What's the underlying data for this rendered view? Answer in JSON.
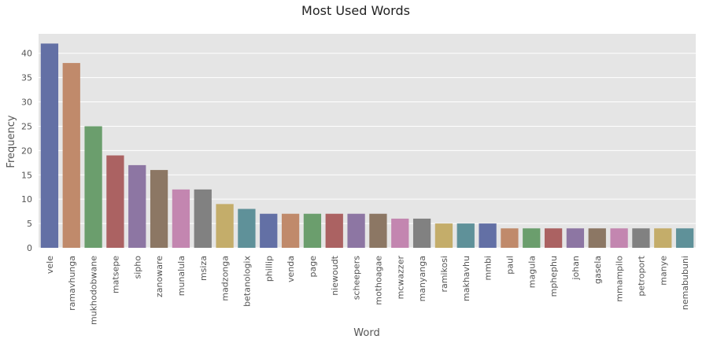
{
  "chart_data": {
    "type": "bar",
    "title": "Most Used Words",
    "xlabel": "Word",
    "ylabel": "Frequency",
    "ylim": [
      0,
      44
    ],
    "yticks": [
      0,
      5,
      10,
      15,
      20,
      25,
      30,
      35,
      40
    ],
    "grid": true,
    "categories": [
      "vele",
      "ramavhunga",
      "mukhodobwane",
      "matsepe",
      "sipho",
      "zanoware",
      "munalula",
      "msiza",
      "madzonga",
      "betanologix",
      "phillip",
      "venda",
      "page",
      "niewoudt",
      "scheepers",
      "mothoagae",
      "mcwazzer",
      "manyanga",
      "ramikosi",
      "makhavhu",
      "mmbi",
      "paul",
      "magula",
      "mphephu",
      "johan",
      "gasela",
      "mmampilo",
      "petroport",
      "manye",
      "nemabubuni"
    ],
    "values": [
      42,
      38,
      25,
      19,
      17,
      16,
      12,
      12,
      9,
      8,
      7,
      7,
      7,
      7,
      7,
      7,
      6,
      6,
      5,
      5,
      5,
      4,
      4,
      4,
      4,
      4,
      4,
      4,
      4,
      4
    ],
    "palette": [
      "#6370a5",
      "#c08a6b",
      "#6b9e6d",
      "#ab6262",
      "#8d76a3",
      "#8c7764",
      "#c386b0",
      "#818181",
      "#c4ad6a",
      "#5f9199"
    ],
    "background": "#e5e5e5",
    "grid_color": "#ffffff"
  }
}
